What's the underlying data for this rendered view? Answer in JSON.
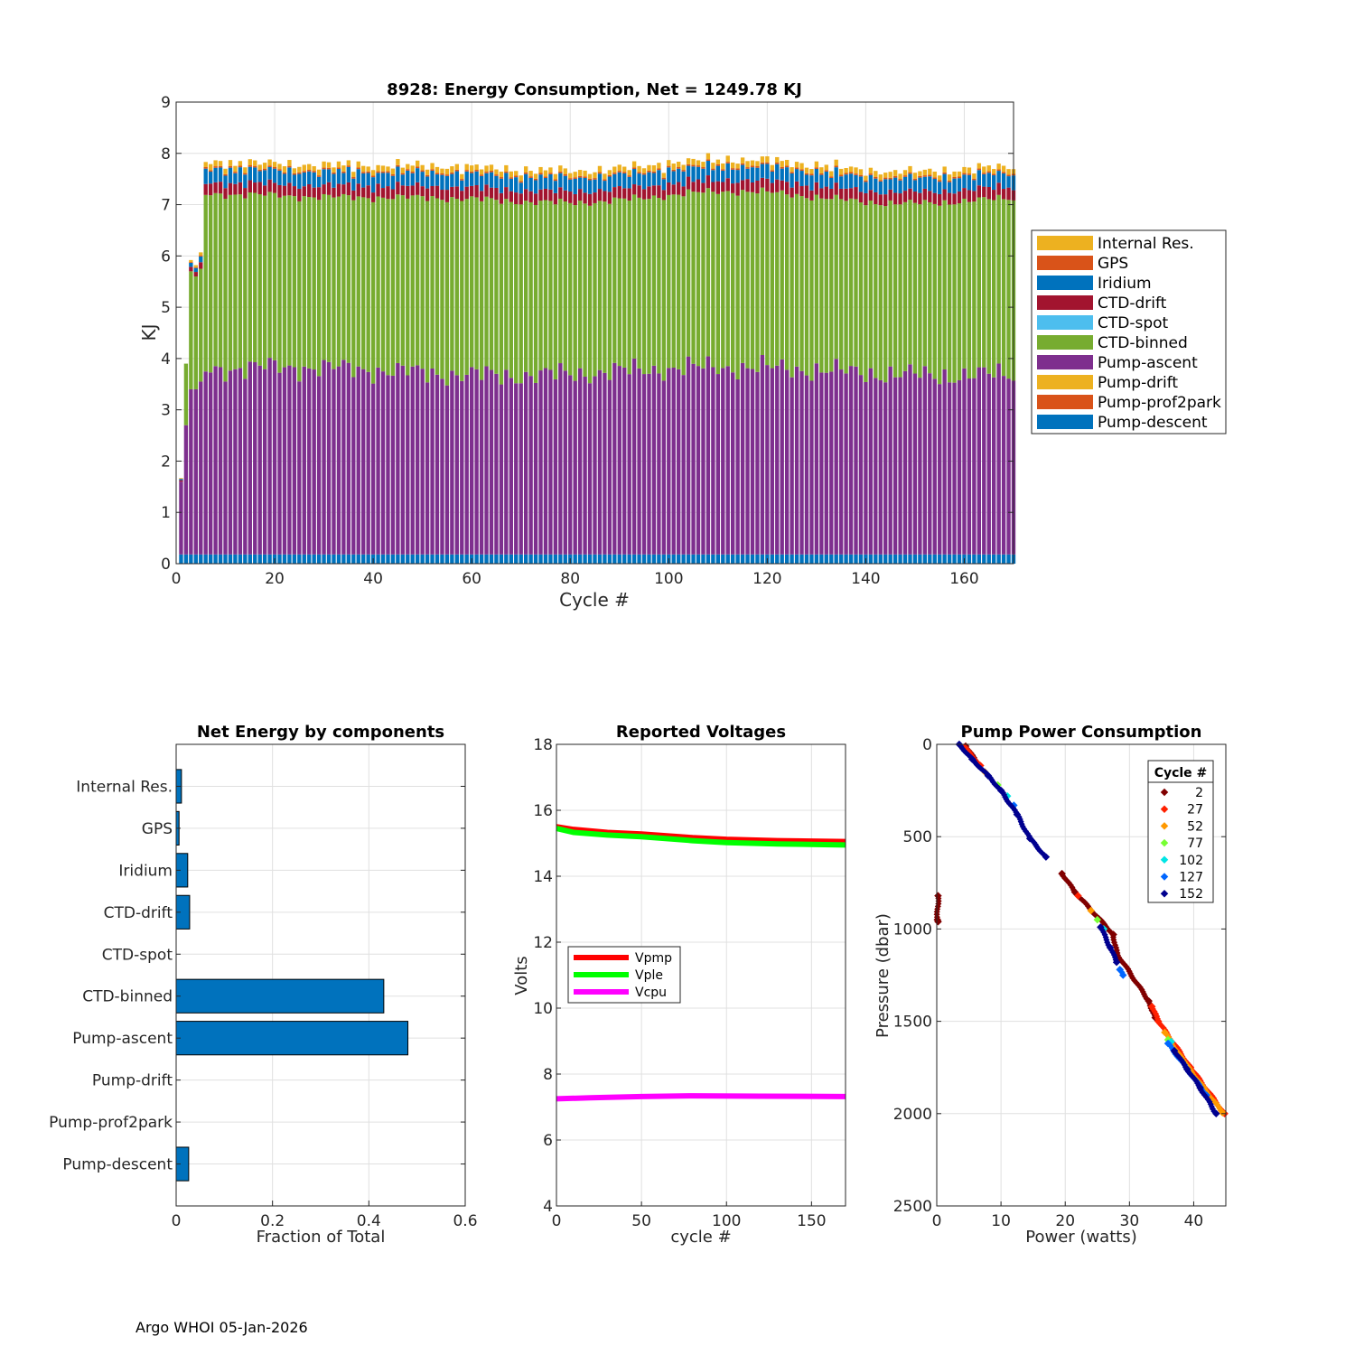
{
  "footer": "Argo WHOI 05-Jan-2026",
  "chart_data": [
    {
      "type": "bar",
      "stacked": true,
      "title": "8928: Energy Consumption,  Net = 1249.78 KJ",
      "xlabel": "Cycle #",
      "ylabel": "KJ",
      "xlim": [
        0,
        170
      ],
      "ylim": [
        0,
        9
      ],
      "xticks": [
        0,
        20,
        40,
        60,
        80,
        100,
        120,
        140,
        160
      ],
      "yticks": [
        0,
        1,
        2,
        3,
        4,
        5,
        6,
        7,
        8,
        9
      ],
      "grid": true,
      "legend_position": "right",
      "n_cycles": 170,
      "series": [
        {
          "name": "Pump-descent",
          "color": "#0072BD",
          "typical": 0.18
        },
        {
          "name": "Pump-prof2park",
          "color": "#D95319",
          "typical": 0.0
        },
        {
          "name": "Pump-drift",
          "color": "#EDB120",
          "typical": 0.0
        },
        {
          "name": "Pump-ascent",
          "color": "#7E2F8E",
          "typical": 3.75
        },
        {
          "name": "CTD-binned",
          "color": "#77AC30",
          "typical": 3.35
        },
        {
          "name": "CTD-spot",
          "color": "#4DBEEE",
          "typical": 0.0
        },
        {
          "name": "CTD-drift",
          "color": "#A2142F",
          "typical": 0.22
        },
        {
          "name": "Iridium",
          "color": "#0072BD",
          "typical": 0.22
        },
        {
          "name": "GPS",
          "color": "#D95319",
          "typical": 0.03
        },
        {
          "name": "Internal Res.",
          "color": "#EDB120",
          "typical": 0.09
        }
      ],
      "legend_order": [
        "Internal Res.",
        "GPS",
        "Iridium",
        "CTD-drift",
        "CTD-spot",
        "CTD-binned",
        "Pump-ascent",
        "Pump-drift",
        "Pump-prof2park",
        "Pump-descent"
      ],
      "first_cycles": [
        {
          "cycle": 1,
          "ascent": 1.6,
          "binned": 0.0,
          "total": 1.85
        },
        {
          "cycle": 2,
          "ascent": 2.7,
          "binned": 1.2,
          "total": 4.05
        },
        {
          "cycle": 3,
          "ascent": 3.4,
          "binned": 2.3,
          "total": 6.1
        },
        {
          "cycle": 4,
          "ascent": 3.4,
          "binned": 2.2,
          "total": 6.0
        },
        {
          "cycle": 5,
          "ascent": 3.55,
          "binned": 2.2,
          "total": 6.25
        }
      ],
      "stack_total_range": [
        7.4,
        8.1
      ]
    },
    {
      "type": "barh",
      "title": "Net Energy by components",
      "xlabel": "Fraction of Total",
      "xlim": [
        0,
        0.6
      ],
      "xticks": [
        0,
        0.2,
        0.4,
        0.6
      ],
      "xtick_labels": [
        "0",
        "0.2",
        "0.4",
        "0.6"
      ],
      "categories": [
        "Internal Res.",
        "GPS",
        "Iridium",
        "CTD-drift",
        "CTD-spot",
        "CTD-binned",
        "Pump-ascent",
        "Pump-drift",
        "Pump-prof2park",
        "Pump-descent"
      ],
      "values": [
        0.011,
        0.006,
        0.024,
        0.028,
        0.0,
        0.431,
        0.481,
        0.0,
        0.0,
        0.026
      ],
      "color": "#0072BD"
    },
    {
      "type": "line",
      "title": "Reported Voltages",
      "xlabel": "cycle #",
      "ylabel": "Volts",
      "xlim": [
        0,
        170
      ],
      "ylim": [
        4,
        18
      ],
      "xticks": [
        0,
        50,
        100,
        150
      ],
      "yticks": [
        4,
        6,
        8,
        10,
        12,
        14,
        16,
        18
      ],
      "series": [
        {
          "name": "Vpmp",
          "color": "#FF0000",
          "x": [
            0,
            10,
            30,
            50,
            80,
            100,
            130,
            170
          ],
          "y": [
            15.5,
            15.42,
            15.33,
            15.28,
            15.17,
            15.12,
            15.08,
            15.05
          ]
        },
        {
          "name": "Vple",
          "color": "#00FF00",
          "x": [
            0,
            10,
            30,
            50,
            80,
            100,
            130,
            170
          ],
          "y": [
            15.45,
            15.33,
            15.25,
            15.2,
            15.08,
            15.02,
            14.98,
            14.95
          ]
        },
        {
          "name": "Vcpu",
          "color": "#FF00FF",
          "x": [
            0,
            20,
            50,
            80,
            120,
            170
          ],
          "y": [
            7.25,
            7.28,
            7.32,
            7.34,
            7.33,
            7.32
          ]
        }
      ]
    },
    {
      "type": "scatter",
      "title": "Pump Power Consumption",
      "xlabel": "Power (watts)",
      "ylabel": "Pressure (dbar)",
      "xlim": [
        0,
        45
      ],
      "ylim": [
        2500,
        0
      ],
      "xticks": [
        0,
        10,
        20,
        30,
        40
      ],
      "yticks": [
        0,
        500,
        1000,
        1500,
        2000,
        2500
      ],
      "legend_title": "Cycle #",
      "series": [
        {
          "name": "2",
          "color": "#800000",
          "points": [
            [
              0.2,
              820
            ],
            [
              0.1,
              950
            ],
            [
              0.2,
              960
            ],
            [
              4.5,
              10
            ],
            [
              6.5,
              110
            ],
            [
              19.5,
              700
            ],
            [
              21.5,
              800
            ],
            [
              27.5,
              1030
            ],
            [
              28.0,
              1130
            ],
            [
              33.0,
              1390
            ],
            [
              34.0,
              1480
            ]
          ]
        },
        {
          "name": "27",
          "color": "#FF2000",
          "points": [
            [
              4.3,
              15
            ],
            [
              6.8,
              115
            ],
            [
              22.0,
              820
            ],
            [
              33.5,
              1420
            ],
            [
              34.5,
              1500
            ],
            [
              39.5,
              1750
            ],
            [
              44.8,
              2000
            ]
          ]
        },
        {
          "name": "52",
          "color": "#FF9900",
          "points": [
            [
              7.5,
              150
            ],
            [
              24.0,
              900
            ],
            [
              35.5,
              1560
            ],
            [
              38.5,
              1720
            ],
            [
              44.5,
              1995
            ]
          ]
        },
        {
          "name": "77",
          "color": "#77FF33",
          "points": [
            [
              9.5,
              220
            ],
            [
              25.0,
              950
            ],
            [
              36.0,
              1600
            ]
          ]
        },
        {
          "name": "102",
          "color": "#00E5E5",
          "points": [
            [
              11.0,
              280
            ],
            [
              26.0,
              1000
            ],
            [
              36.5,
              1610
            ]
          ]
        },
        {
          "name": "127",
          "color": "#0066FF",
          "points": [
            [
              12.0,
              330
            ],
            [
              28.5,
              1220
            ],
            [
              29.0,
              1250
            ],
            [
              36.0,
              1620
            ],
            [
              42.0,
              1900
            ]
          ]
        },
        {
          "name": "152",
          "color": "#00008F",
          "points": [
            [
              3.5,
              0
            ],
            [
              5.5,
              80
            ],
            [
              8.0,
              170
            ],
            [
              10.0,
              250
            ],
            [
              12.5,
              380
            ],
            [
              14.5,
              510
            ],
            [
              17.0,
              610
            ],
            [
              25.5,
              990
            ],
            [
              27.0,
              1100
            ],
            [
              28.0,
              1180
            ],
            [
              37.0,
              1660
            ],
            [
              39.0,
              1760
            ],
            [
              41.0,
              1860
            ],
            [
              43.5,
              2000
            ]
          ]
        }
      ]
    }
  ]
}
